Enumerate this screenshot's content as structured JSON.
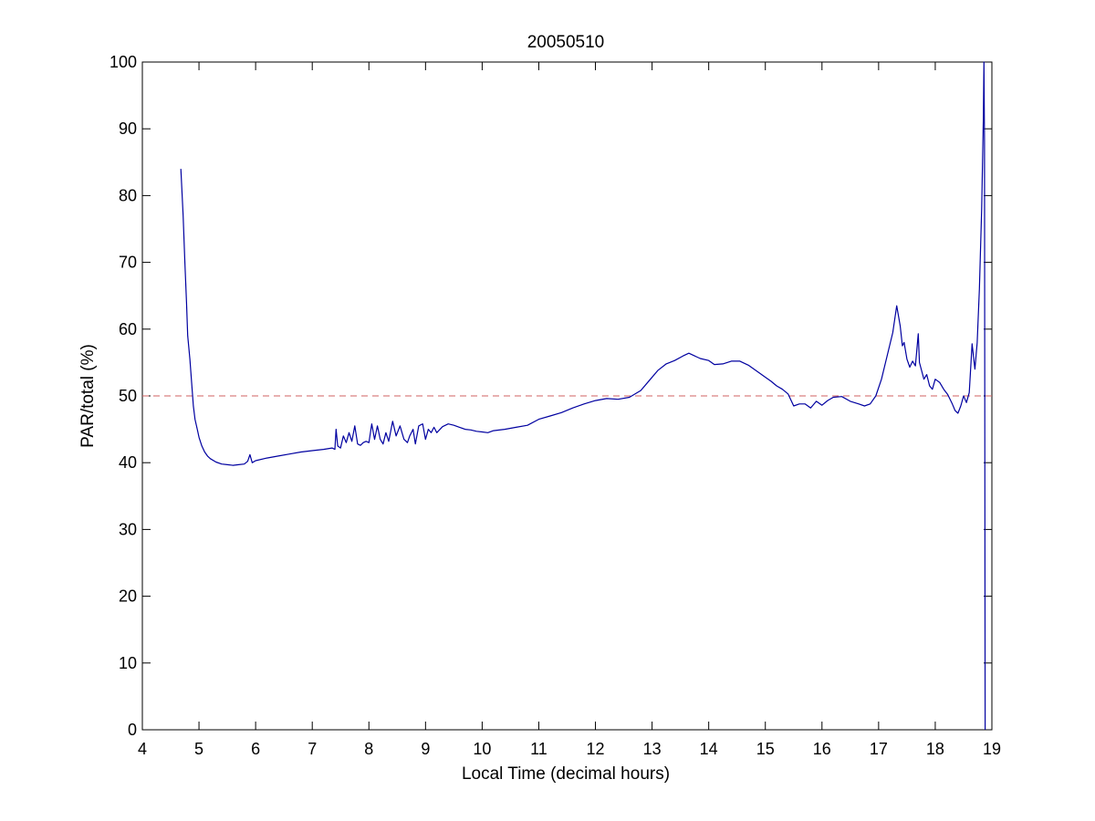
{
  "chart_data": {
    "type": "line",
    "title": "20050510",
    "xlabel": "Local Time (decimal hours)",
    "ylabel": "PAR/total (%)",
    "xlim": [
      4,
      19
    ],
    "ylim": [
      0,
      100
    ],
    "xticks": [
      4,
      5,
      6,
      7,
      8,
      9,
      10,
      11,
      12,
      13,
      14,
      15,
      16,
      17,
      18,
      19
    ],
    "yticks": [
      0,
      10,
      20,
      30,
      40,
      50,
      60,
      70,
      80,
      90,
      100
    ],
    "grid": false,
    "legend": "none",
    "series": [
      {
        "color": "#0000a0",
        "style": "solid",
        "points": [
          [
            4.68,
            84.0
          ],
          [
            4.72,
            77.0
          ],
          [
            4.75,
            70.0
          ],
          [
            4.78,
            64.0
          ],
          [
            4.8,
            59.0
          ],
          [
            4.84,
            55.5
          ],
          [
            4.87,
            52.0
          ],
          [
            4.9,
            48.5
          ],
          [
            4.93,
            46.5
          ],
          [
            4.97,
            45.0
          ],
          [
            5.0,
            43.8
          ],
          [
            5.05,
            42.5
          ],
          [
            5.1,
            41.6
          ],
          [
            5.15,
            41.0
          ],
          [
            5.2,
            40.6
          ],
          [
            5.3,
            40.1
          ],
          [
            5.4,
            39.8
          ],
          [
            5.5,
            39.7
          ],
          [
            5.6,
            39.6
          ],
          [
            5.7,
            39.7
          ],
          [
            5.8,
            39.8
          ],
          [
            5.86,
            40.2
          ],
          [
            5.9,
            41.2
          ],
          [
            5.94,
            40.0
          ],
          [
            6.0,
            40.3
          ],
          [
            6.2,
            40.7
          ],
          [
            6.4,
            41.0
          ],
          [
            6.6,
            41.3
          ],
          [
            6.8,
            41.6
          ],
          [
            7.0,
            41.8
          ],
          [
            7.2,
            42.0
          ],
          [
            7.35,
            42.2
          ],
          [
            7.4,
            42.0
          ],
          [
            7.42,
            45.0
          ],
          [
            7.45,
            42.5
          ],
          [
            7.5,
            42.2
          ],
          [
            7.55,
            44.0
          ],
          [
            7.6,
            43.0
          ],
          [
            7.65,
            44.5
          ],
          [
            7.7,
            43.2
          ],
          [
            7.75,
            45.5
          ],
          [
            7.8,
            42.8
          ],
          [
            7.85,
            42.6
          ],
          [
            7.9,
            43.0
          ],
          [
            7.95,
            43.2
          ],
          [
            8.0,
            43.0
          ],
          [
            8.05,
            45.8
          ],
          [
            8.1,
            43.5
          ],
          [
            8.15,
            45.5
          ],
          [
            8.2,
            43.5
          ],
          [
            8.25,
            42.8
          ],
          [
            8.3,
            44.5
          ],
          [
            8.35,
            43.2
          ],
          [
            8.42,
            46.2
          ],
          [
            8.48,
            44.0
          ],
          [
            8.55,
            45.5
          ],
          [
            8.62,
            43.5
          ],
          [
            8.68,
            43.0
          ],
          [
            8.72,
            44.0
          ],
          [
            8.78,
            45.0
          ],
          [
            8.82,
            42.8
          ],
          [
            8.88,
            45.5
          ],
          [
            8.95,
            45.8
          ],
          [
            9.0,
            43.5
          ],
          [
            9.05,
            45.0
          ],
          [
            9.1,
            44.5
          ],
          [
            9.15,
            45.3
          ],
          [
            9.2,
            44.5
          ],
          [
            9.3,
            45.4
          ],
          [
            9.4,
            45.8
          ],
          [
            9.5,
            45.6
          ],
          [
            9.6,
            45.3
          ],
          [
            9.7,
            45.0
          ],
          [
            9.8,
            44.9
          ],
          [
            9.9,
            44.7
          ],
          [
            10.0,
            44.6
          ],
          [
            10.1,
            44.5
          ],
          [
            10.2,
            44.8
          ],
          [
            10.4,
            45.0
          ],
          [
            10.6,
            45.3
          ],
          [
            10.8,
            45.6
          ],
          [
            11.0,
            46.5
          ],
          [
            11.2,
            47.0
          ],
          [
            11.4,
            47.5
          ],
          [
            11.6,
            48.2
          ],
          [
            11.8,
            48.8
          ],
          [
            12.0,
            49.3
          ],
          [
            12.2,
            49.6
          ],
          [
            12.4,
            49.5
          ],
          [
            12.6,
            49.8
          ],
          [
            12.8,
            50.8
          ],
          [
            12.95,
            52.3
          ],
          [
            13.1,
            53.8
          ],
          [
            13.25,
            54.8
          ],
          [
            13.4,
            55.3
          ],
          [
            13.55,
            56.0
          ],
          [
            13.65,
            56.4
          ],
          [
            13.75,
            56.0
          ],
          [
            13.85,
            55.6
          ],
          [
            14.0,
            55.3
          ],
          [
            14.1,
            54.7
          ],
          [
            14.25,
            54.8
          ],
          [
            14.4,
            55.2
          ],
          [
            14.55,
            55.2
          ],
          [
            14.7,
            54.6
          ],
          [
            14.85,
            53.7
          ],
          [
            15.0,
            52.8
          ],
          [
            15.1,
            52.2
          ],
          [
            15.2,
            51.5
          ],
          [
            15.3,
            51.0
          ],
          [
            15.4,
            50.3
          ],
          [
            15.5,
            48.5
          ],
          [
            15.6,
            48.8
          ],
          [
            15.7,
            48.8
          ],
          [
            15.8,
            48.2
          ],
          [
            15.9,
            49.2
          ],
          [
            16.0,
            48.6
          ],
          [
            16.1,
            49.3
          ],
          [
            16.2,
            49.8
          ],
          [
            16.35,
            49.9
          ],
          [
            16.5,
            49.2
          ],
          [
            16.65,
            48.8
          ],
          [
            16.75,
            48.5
          ],
          [
            16.85,
            48.8
          ],
          [
            16.95,
            50.0
          ],
          [
            17.05,
            52.5
          ],
          [
            17.15,
            56.0
          ],
          [
            17.25,
            59.5
          ],
          [
            17.32,
            63.5
          ],
          [
            17.38,
            60.5
          ],
          [
            17.42,
            57.5
          ],
          [
            17.45,
            58.0
          ],
          [
            17.5,
            55.5
          ],
          [
            17.55,
            54.3
          ],
          [
            17.6,
            55.2
          ],
          [
            17.65,
            54.5
          ],
          [
            17.7,
            59.3
          ],
          [
            17.72,
            55.0
          ],
          [
            17.8,
            52.5
          ],
          [
            17.85,
            53.2
          ],
          [
            17.9,
            51.5
          ],
          [
            17.95,
            51.0
          ],
          [
            18.0,
            52.5
          ],
          [
            18.08,
            52.0
          ],
          [
            18.15,
            51.0
          ],
          [
            18.22,
            50.2
          ],
          [
            18.3,
            48.8
          ],
          [
            18.35,
            47.8
          ],
          [
            18.4,
            47.4
          ],
          [
            18.45,
            48.5
          ],
          [
            18.5,
            50.0
          ],
          [
            18.55,
            49.0
          ],
          [
            18.6,
            50.5
          ],
          [
            18.65,
            57.8
          ],
          [
            18.7,
            54.0
          ],
          [
            18.74,
            58.0
          ],
          [
            18.78,
            66.0
          ],
          [
            18.82,
            78.0
          ],
          [
            18.85,
            92.0
          ],
          [
            18.86,
            100.0
          ],
          [
            18.87,
            88.0
          ],
          [
            18.88,
            0.0
          ]
        ]
      }
    ],
    "reference_line": {
      "y": 50,
      "color": "#d06060",
      "style": "dashed"
    }
  }
}
